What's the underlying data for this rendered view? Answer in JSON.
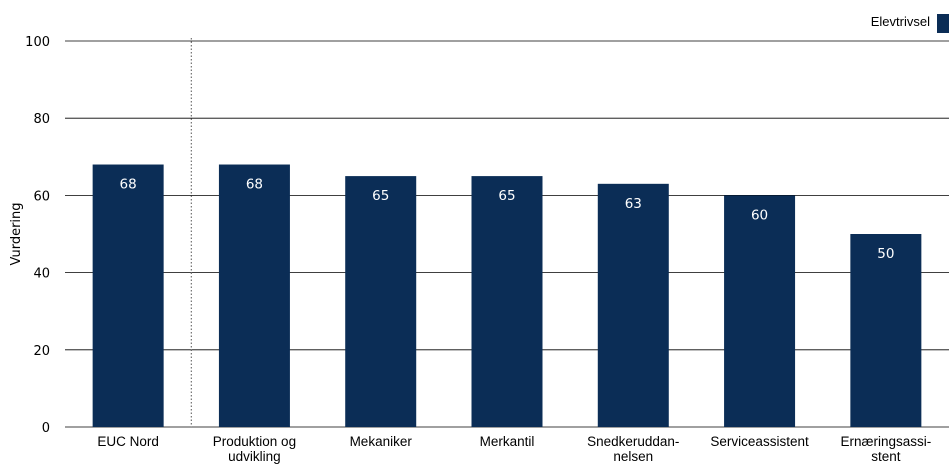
{
  "chart_data": {
    "type": "bar",
    "categories": [
      [
        "EUC Nord"
      ],
      [
        "Produktion og",
        "udvikling"
      ],
      [
        "Mekaniker"
      ],
      [
        "Merkantil"
      ],
      [
        "Snedkeruddan-",
        "nelsen"
      ],
      [
        "Serviceassistent"
      ],
      [
        "Ernæringsassi-",
        "stent"
      ]
    ],
    "series": [
      {
        "name": "Elevtrivsel",
        "values": [
          68,
          68,
          65,
          65,
          63,
          60,
          50
        ],
        "labels": [
          "68",
          "68",
          "65",
          "65",
          "63",
          "60",
          "50"
        ],
        "color": "#0b2d56"
      }
    ],
    "ylabel": "Vurdering",
    "ylim": [
      0,
      100
    ],
    "yticks": [
      "0",
      "20",
      "40",
      "60",
      "80",
      "100"
    ],
    "grid": true,
    "legend_position": "top-right",
    "separator_after_first": true
  }
}
